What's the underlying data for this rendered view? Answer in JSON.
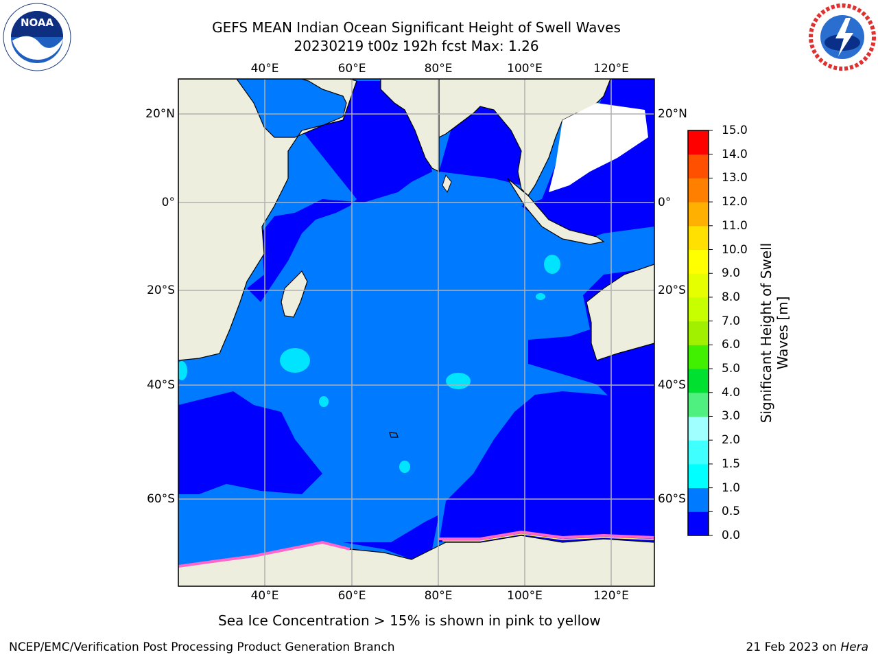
{
  "header": {
    "title_line1": "GEFS MEAN Indian Ocean Significant Height of Swell Waves",
    "title_line2": "20230219 t00z 192h fcst   Max: 1.26"
  },
  "logos": {
    "left": {
      "name": "noaa-logo",
      "text": "NOAA",
      "ring_text": "NATIONAL OCEANIC AND ATMOSPHERIC ADMINISTRATION · U.S. DEPARTMENT OF COMMERCE"
    },
    "right": {
      "name": "nws-logo",
      "ring_text": "NATIONAL WEATHER SERVICE"
    }
  },
  "map": {
    "lon_ticks_top": [
      "40°E",
      "60°E",
      "80°E",
      "100°E",
      "120°E"
    ],
    "lon_ticks_bottom": [
      "40°E",
      "60°E",
      "80°E",
      "100°E",
      "120°E"
    ],
    "lat_ticks_left": [
      "20°N",
      "0°",
      "20°S",
      "40°S",
      "60°S"
    ],
    "lat_ticks_right": [
      "20°N",
      "0°",
      "20°S",
      "40°S",
      "60°S"
    ],
    "colors": {
      "land": "#eeeede",
      "ocean_0_0_5": "#0000ff",
      "ocean_0_5_1_0": "#007bff",
      "ocean_1_0_1_5": "#00e4ff",
      "ice_no_data": "#ffffff",
      "grid": "#b0b0b0"
    }
  },
  "colorbar": {
    "label": "Significant Height of Swell Waves [m]",
    "label_line1": "Significant Height of Swell",
    "label_line2": "Waves [m]",
    "levels": [
      "0.0",
      "0.5",
      "1.0",
      "1.5",
      "2.0",
      "3.0",
      "4.0",
      "5.0",
      "6.0",
      "7.0",
      "8.0",
      "9.0",
      "10.0",
      "11.0",
      "12.0",
      "13.0",
      "14.0",
      "15.0"
    ],
    "colors": [
      "#0000ff",
      "#007bff",
      "#00ffff",
      "#40ffff",
      "#a0ffff",
      "#50f080",
      "#00e030",
      "#40f000",
      "#a0f000",
      "#c8ff00",
      "#e6ff00",
      "#ffff00",
      "#ffe000",
      "#ffb000",
      "#ff8000",
      "#ff5000",
      "#ff0000"
    ]
  },
  "caption": "Sea Ice Concentration > 15% is shown in pink to yellow",
  "footer": {
    "left": "NCEP/EMC/Verification Post Processing Product Generation Branch",
    "right_prefix": "21 Feb 2023 on ",
    "right_host": "Hera"
  }
}
